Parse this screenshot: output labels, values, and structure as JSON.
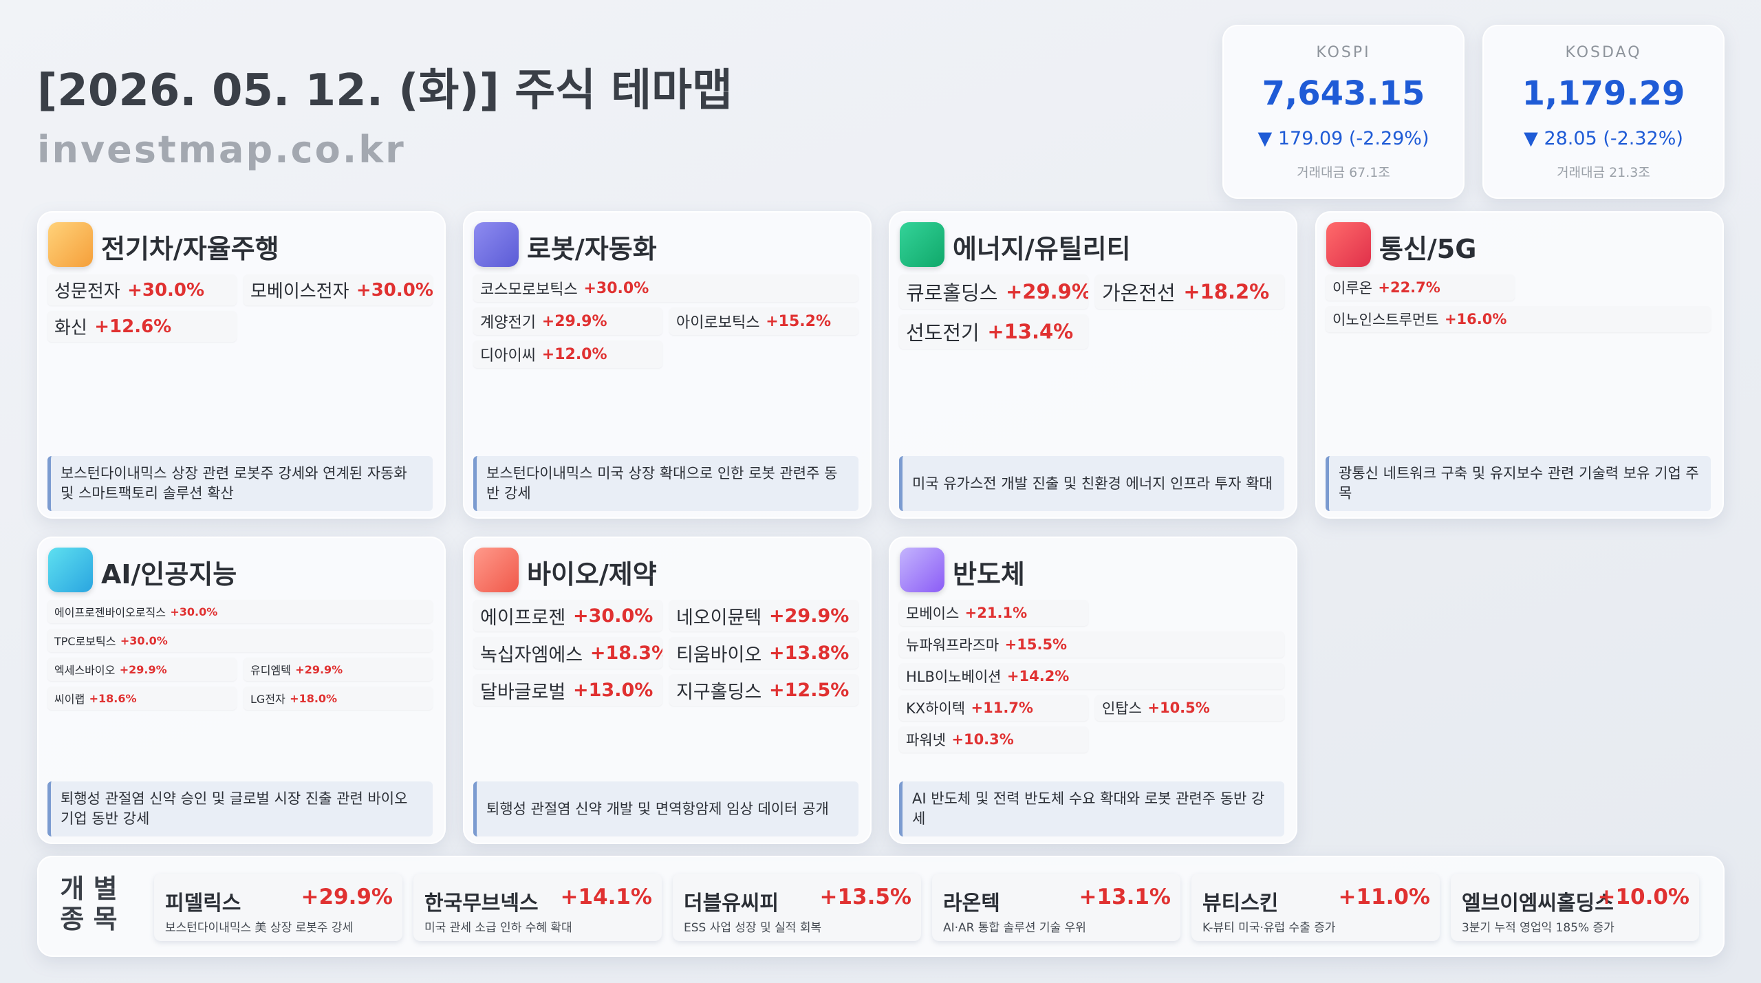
{
  "header": {
    "title": "[2026. 05. 12. (화)] 주식 테마맵",
    "site": "investmap.co.kr"
  },
  "indices": [
    {
      "name": "KOSPI",
      "value": "7,643.15",
      "change": "▼ 179.09 (-2.29%)",
      "volume": "거래대금 67.1조"
    },
    {
      "name": "KOSDAQ",
      "value": "1,179.29",
      "change": "▼ 28.05 (-2.32%)",
      "volume": "거래대금 21.3조"
    }
  ],
  "themes": [
    {
      "title": "전기차/자율주행",
      "stocks": [
        {
          "name": "성문전자",
          "change": "+30.0%"
        },
        {
          "name": "모베이스전자",
          "change": "+30.0%"
        },
        {
          "name": "화신",
          "change": "+12.6%"
        }
      ],
      "note": "보스턴다이내믹스 상장 관련 로봇주 강세와 연계된 자동화 및 스마트팩토리 솔루션 확산"
    },
    {
      "title": "로봇/자동화",
      "stocks": [
        {
          "name": "코스모로보틱스",
          "change": "+30.0%"
        },
        {
          "name": "계양전기",
          "change": "+29.9%"
        },
        {
          "name": "아이로보틱스",
          "change": "+15.2%"
        },
        {
          "name": "디아이씨",
          "change": "+12.0%"
        }
      ],
      "note": "보스턴다이내믹스 미국 상장 확대으로 인한 로봇 관련주 동반 강세"
    },
    {
      "title": "에너지/유틸리티",
      "stocks": [
        {
          "name": "큐로홀딩스",
          "change": "+29.9%"
        },
        {
          "name": "가온전선",
          "change": "+18.2%"
        },
        {
          "name": "선도전기",
          "change": "+13.4%"
        }
      ],
      "note": "미국 유가스전 개발 진출 및 친환경 에너지 인프라 투자 확대"
    },
    {
      "title": "통신/5G",
      "stocks": [
        {
          "name": "이루온",
          "change": "+22.7%"
        },
        {
          "name": "이노인스트루먼트",
          "change": "+16.0%"
        }
      ],
      "note": "광통신 네트워크 구축 및 유지보수 관련 기술력 보유 기업 주목"
    },
    {
      "title": "AI/인공지능",
      "stocks": [
        {
          "name": "에이프로젠바이오로직스",
          "change": "+30.0%"
        },
        {
          "name": "TPC로보틱스",
          "change": "+30.0%"
        },
        {
          "name": "엑세스바이오",
          "change": "+29.9%"
        },
        {
          "name": "유디엠텍",
          "change": "+29.9%"
        },
        {
          "name": "씨이랩",
          "change": "+18.6%"
        },
        {
          "name": "LG전자",
          "change": "+18.0%"
        }
      ],
      "note": "퇴행성 관절염 신약 승인 및 글로벌 시장 진출 관련 바이오 기업 동반 강세"
    },
    {
      "title": "바이오/제약",
      "stocks": [
        {
          "name": "에이프로젠",
          "change": "+30.0%"
        },
        {
          "name": "네오이뮨텍",
          "change": "+29.9%"
        },
        {
          "name": "녹십자엠에스",
          "change": "+18.3%"
        },
        {
          "name": "티움바이오",
          "change": "+13.8%"
        },
        {
          "name": "달바글로벌",
          "change": "+13.0%"
        },
        {
          "name": "지구홀딩스",
          "change": "+12.5%"
        }
      ],
      "note": "퇴행성 관절염 신약 개발 및 면역항암제 임상 데이터 공개"
    },
    {
      "title": "반도체",
      "stocks": [
        {
          "name": "모베이스",
          "change": "+21.1%"
        },
        {
          "name": "뉴파워프라즈마",
          "change": "+15.5%"
        },
        {
          "name": "HLB이노베이션",
          "change": "+14.2%"
        },
        {
          "name": "KX하이텍",
          "change": "+11.7%"
        },
        {
          "name": "인탑스",
          "change": "+10.5%"
        },
        {
          "name": "파워넷",
          "change": "+10.3%"
        }
      ],
      "note": "AI 반도체 및 전력 반도체 수요 확대와 로봇 관련주 동반 강세"
    }
  ],
  "individual": {
    "label": [
      "개 별",
      "종 목"
    ],
    "stocks": [
      {
        "name": "피델릭스",
        "change": "+29.9%",
        "note": "보스턴다이내믹스 美 상장 로봇주 강세"
      },
      {
        "name": "한국무브넥스",
        "change": "+14.1%",
        "note": "미국 관세 소급 인하 수혜 확대"
      },
      {
        "name": "더블유씨피",
        "change": "+13.5%",
        "note": "ESS 사업 성장 및 실적 회복"
      },
      {
        "name": "라온텍",
        "change": "+13.1%",
        "note": "AI·AR 통합 솔루션 기술 우위"
      },
      {
        "name": "뷰티스킨",
        "change": "+11.0%",
        "note": "K-뷰티 미국·유럽 수출 증가"
      },
      {
        "name": "엘브이엠씨홀딩스",
        "change": "+10.0%",
        "note": "3분기 누적 영업익 185% 증가"
      }
    ]
  }
}
